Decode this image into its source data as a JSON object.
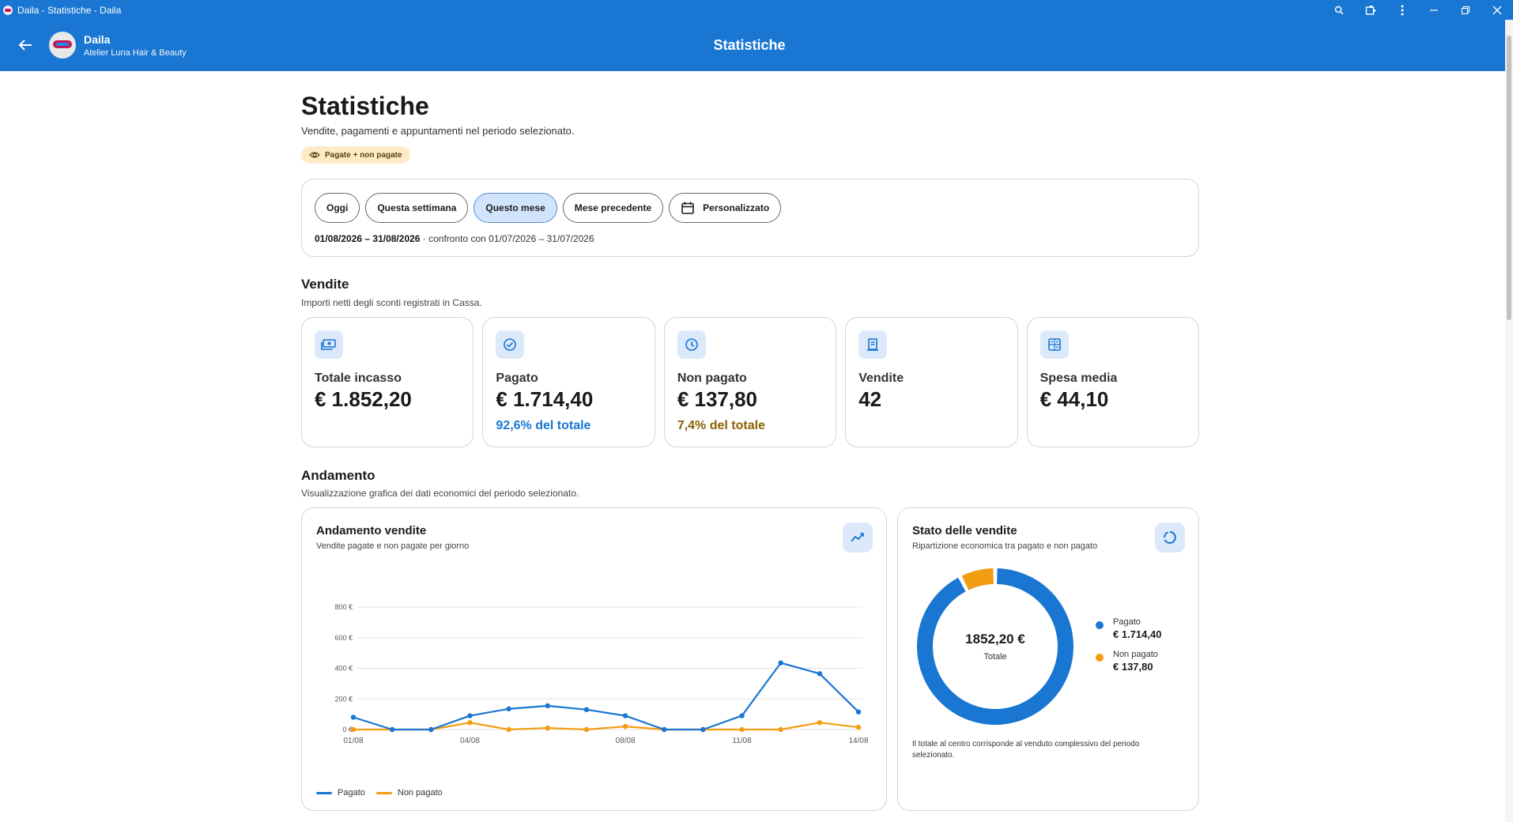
{
  "window": {
    "title": "Daila - Statistiche - Daila"
  },
  "appbar": {
    "user_name": "Daila",
    "salon_name": "Atelier Luna Hair & Beauty",
    "title": "Statistiche"
  },
  "page": {
    "title": "Statistiche",
    "subtitle": "Vendite, pagamenti e appuntamenti nel periodo selezionato.",
    "view_chip": "Pagate + non pagate"
  },
  "period": {
    "buttons": [
      "Oggi",
      "Questa settimana",
      "Questo mese",
      "Mese precedente",
      "Personalizzato"
    ],
    "active": "Questo mese",
    "range": "01/08/2026 – 31/08/2026",
    "compare": " · confronto con 01/07/2026 – 31/07/2026"
  },
  "sales": {
    "title": "Vendite",
    "subtitle": "Importi netti degli sconti registrati in Cassa.",
    "kpis": [
      {
        "label": "Totale incasso",
        "value": "€ 1.852,20",
        "note": "",
        "icon": "cash-icon"
      },
      {
        "label": "Pagato",
        "value": "€ 1.714,40",
        "note": "92,6% del totale",
        "icon": "check-circle-icon"
      },
      {
        "label": "Non pagato",
        "value": "€ 137,80",
        "note": "7,4% del totale",
        "icon": "clock-icon"
      },
      {
        "label": "Vendite",
        "value": "42",
        "note": "",
        "icon": "receipt-icon"
      },
      {
        "label": "Spesa media",
        "value": "€ 44,10",
        "note": "",
        "icon": "calculator-icon"
      }
    ]
  },
  "trend": {
    "title": "Andamento",
    "subtitle": "Visualizzazione grafica dei dati economici del periodo selezionato."
  },
  "sales_chart": {
    "title": "Andamento vendite",
    "subtitle": "Vendite pagate e non pagate per giorno"
  },
  "status_chart": {
    "title": "Stato delle vendite",
    "subtitle": "Ripartizione economica tra pagato e non pagato",
    "center_value": "1852,20 €",
    "center_label": "Totale",
    "legend": [
      {
        "name": "Pagato",
        "value": "€ 1.714,40"
      },
      {
        "name": "Non pagato",
        "value": "€ 137,80"
      }
    ],
    "note": "Il totale al centro corrisponde al venduto complessivo del periodo selezionato."
  },
  "chart_data": [
    {
      "type": "line",
      "title": "Andamento vendite",
      "x": [
        "01/08",
        "02/08",
        "03/08",
        "04/08",
        "05/08",
        "06/08",
        "07/08",
        "08/08",
        "09/08",
        "10/08",
        "11/08",
        "12/08",
        "13/08",
        "14/08"
      ],
      "x_tick_labels": [
        "01/08",
        "04/08",
        "08/08",
        "11/08",
        "14/08"
      ],
      "y_tick_labels": [
        "0 €",
        "200 €",
        "400 €",
        "600 €",
        "800 €"
      ],
      "ylim": [
        0,
        800
      ],
      "series": [
        {
          "name": "Pagato",
          "color": "#1976d2",
          "values": [
            80,
            0,
            0,
            90,
            135,
            155,
            130,
            90,
            0,
            0,
            90,
            435,
            365,
            115
          ]
        },
        {
          "name": "Non pagato",
          "color": "#f29d12",
          "values": [
            0,
            0,
            0,
            45,
            0,
            10,
            0,
            20,
            0,
            0,
            0,
            0,
            45,
            15
          ]
        }
      ],
      "grid": true,
      "legend": "bottom-left"
    },
    {
      "type": "pie",
      "title": "Stato delle vendite",
      "labels": [
        "Pagato",
        "Non pagato"
      ],
      "values": [
        1714.4,
        137.8
      ],
      "colors": [
        "#1976d2",
        "#f29d12"
      ]
    }
  ]
}
